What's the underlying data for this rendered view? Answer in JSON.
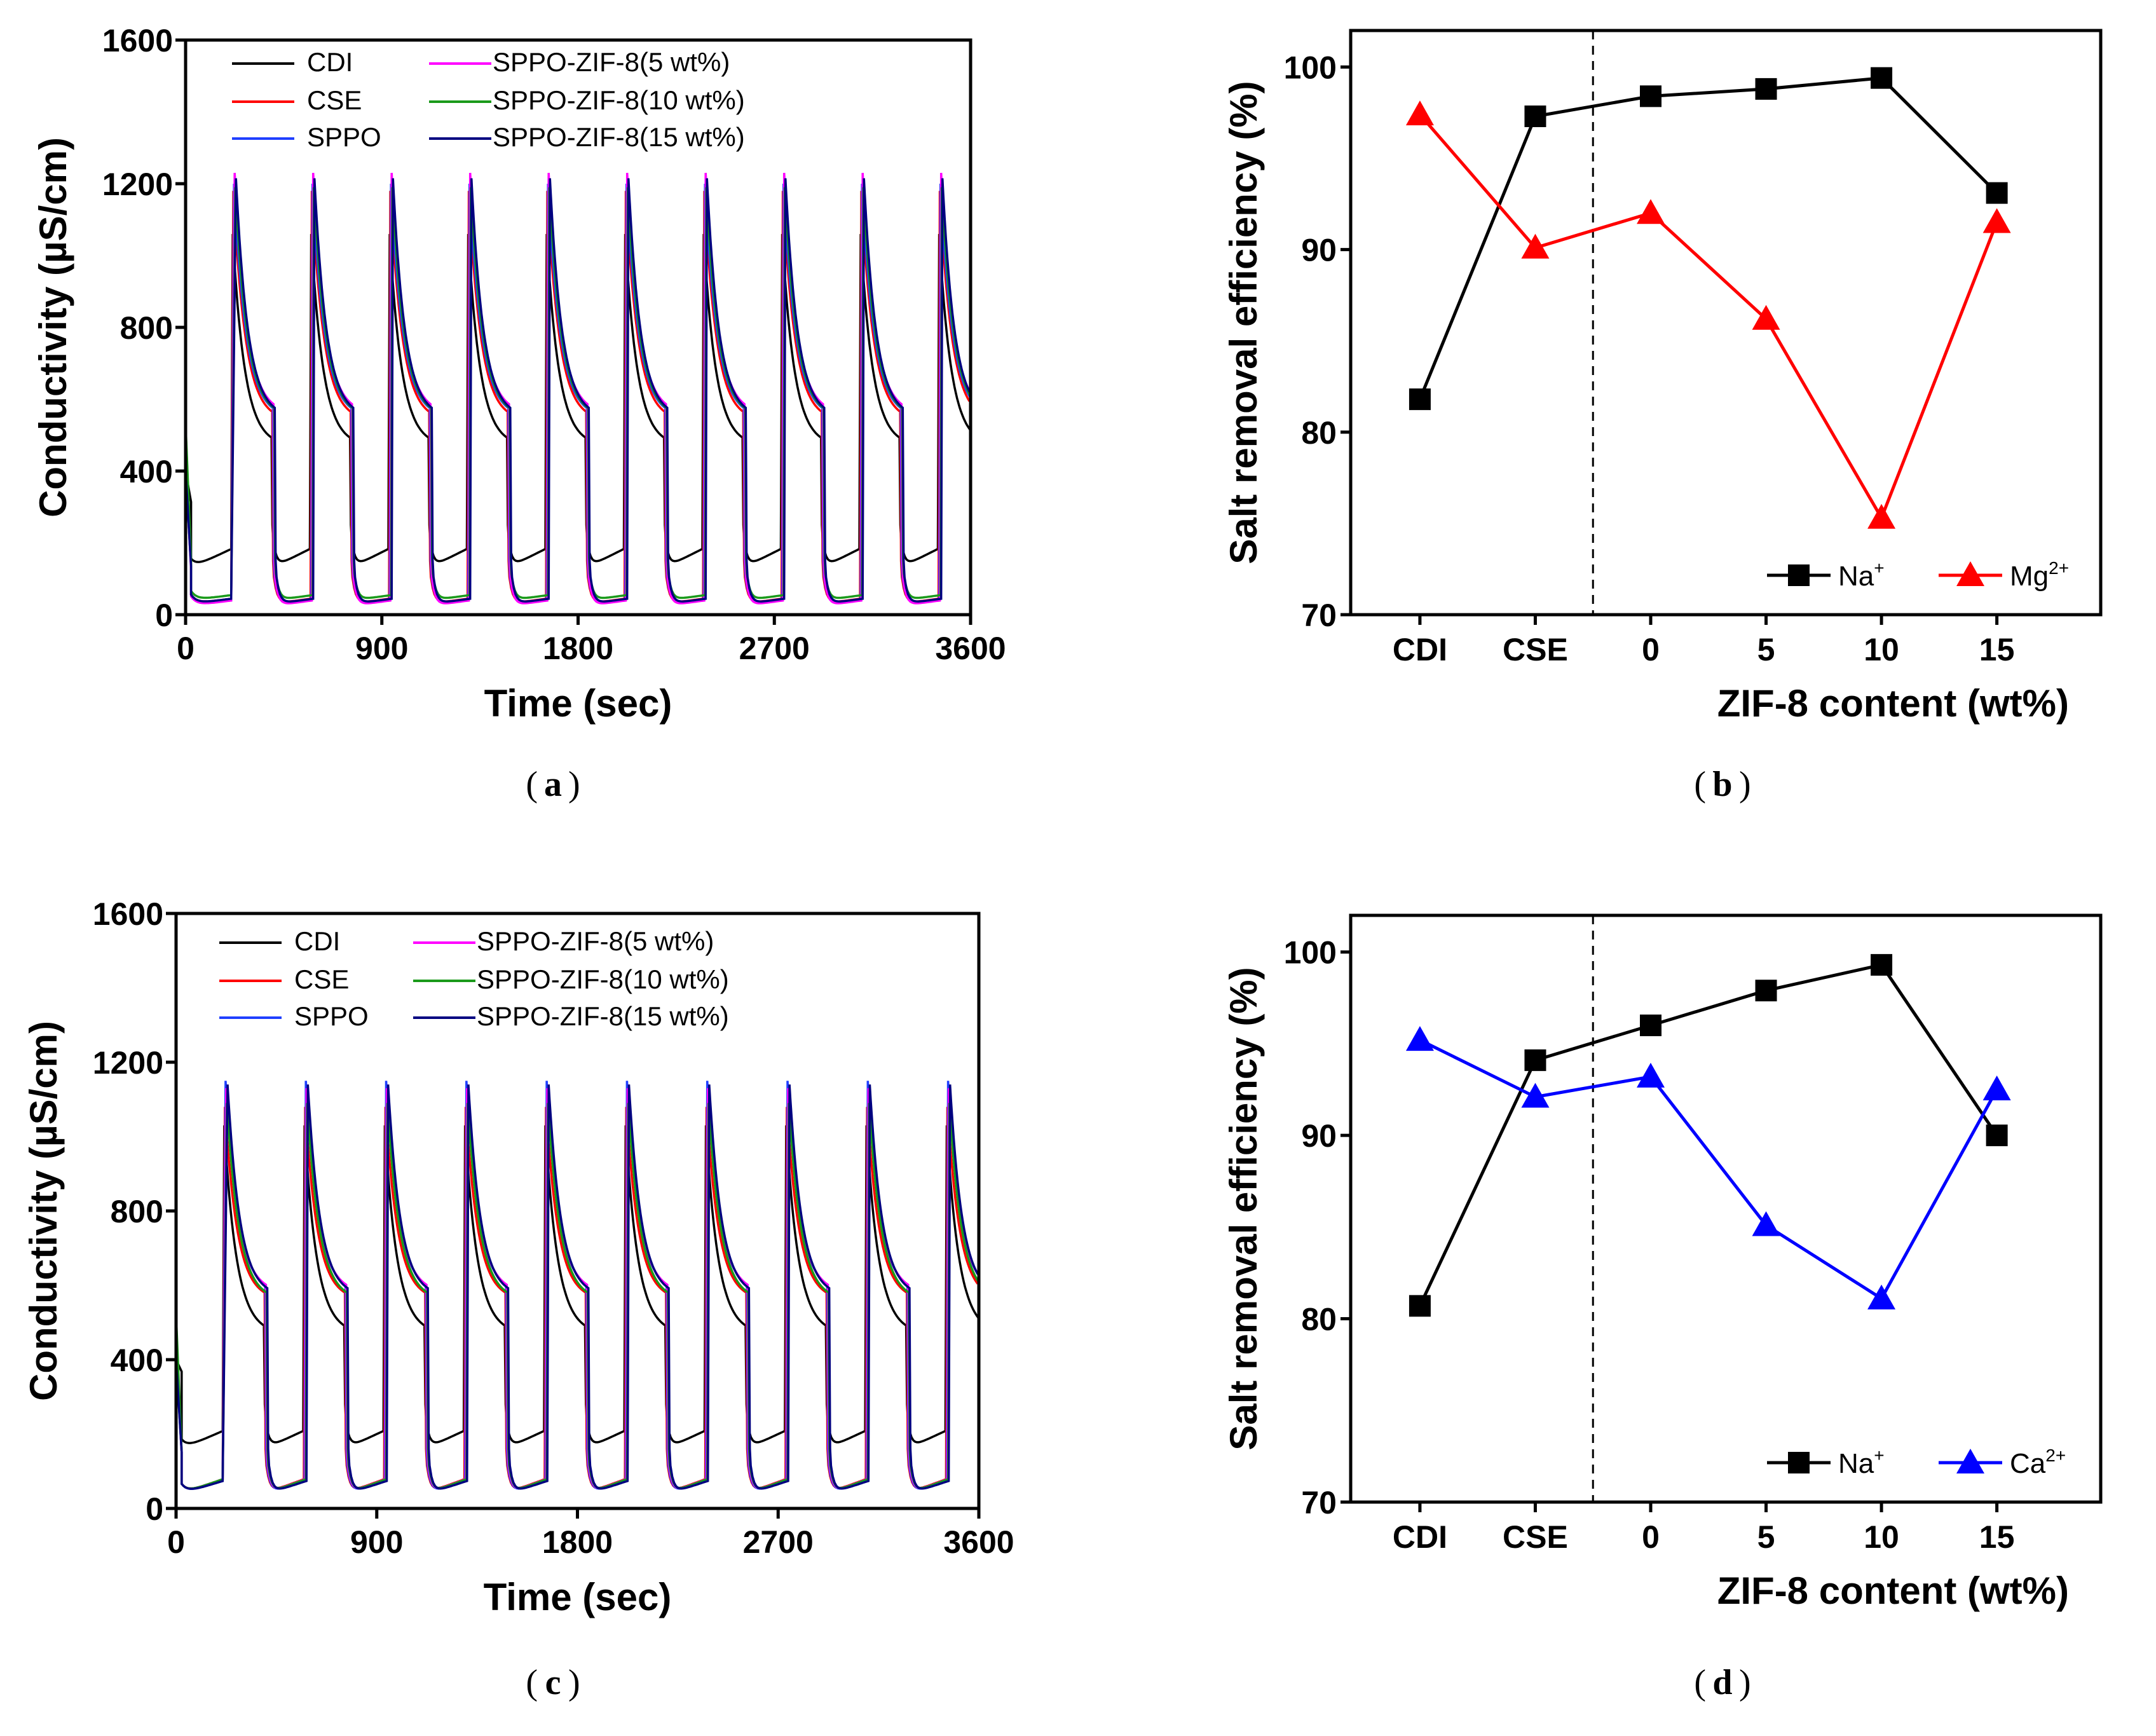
{
  "chart_data": [
    {
      "id": "a",
      "type": "line",
      "caption": "a",
      "xlabel": "Time (sec)",
      "ylabel": "Conductivity (µS/cm)",
      "xlim": [
        0,
        3600
      ],
      "ylim": [
        0,
        1600
      ],
      "xticks": [
        0,
        900,
        1800,
        2700,
        3600
      ],
      "yticks": [
        0,
        400,
        800,
        1200,
        1600
      ],
      "cycle_period": 360,
      "cycles": 10,
      "series": [
        {
          "name": "CDI",
          "color": "#000000",
          "start": 400,
          "peak": 1060,
          "end_high": 470,
          "low": 130,
          "low_end": 185
        },
        {
          "name": "CSE",
          "color": "#ff0000",
          "start": 520,
          "peak": 1180,
          "end_high": 540,
          "low": 30,
          "low_end": 45
        },
        {
          "name": "SPPO",
          "color": "#1f3fff",
          "start": 400,
          "peak": 1200,
          "end_high": 550,
          "low": 30,
          "low_end": 40
        },
        {
          "name": "SPPO-ZIF-8(5 wt%)",
          "color": "#ff00ff",
          "start": 420,
          "peak": 1230,
          "end_high": 560,
          "low": 25,
          "low_end": 40
        },
        {
          "name": "SPPO-ZIF-8(10 wt%)",
          "color": "#1a9a1a",
          "start": 530,
          "peak": 1190,
          "end_high": 550,
          "low": 40,
          "low_end": 55
        },
        {
          "name": "SPPO-ZIF-8(15 wt%)",
          "color": "#000080",
          "start": 400,
          "peak": 1215,
          "end_high": 550,
          "low": 30,
          "low_end": 45
        }
      ]
    },
    {
      "id": "b",
      "type": "line",
      "caption": "b",
      "xlabel": "ZIF-8 content (wt%)",
      "ylabel": "Salt removal efficiency (%)",
      "categories": [
        "CDI",
        "CSE",
        "0",
        "5",
        "10",
        "15"
      ],
      "ylim": [
        70,
        102
      ],
      "yticks": [
        70,
        80,
        90,
        100
      ],
      "series": [
        {
          "name": "Na",
          "sup": "+",
          "color": "#000000",
          "marker": "square",
          "values": [
            81.8,
            97.3,
            98.4,
            98.8,
            99.4,
            93.1
          ]
        },
        {
          "name": "Mg",
          "sup": "2+",
          "color": "#ff0000",
          "marker": "triangle",
          "values": [
            97.4,
            90.1,
            92.0,
            86.2,
            75.3,
            91.5
          ]
        }
      ]
    },
    {
      "id": "c",
      "type": "line",
      "caption": "c",
      "xlabel": "Time (sec)",
      "ylabel": "Conductivity (µS/cm)",
      "xlim": [
        0,
        3600
      ],
      "ylim": [
        0,
        1600
      ],
      "xticks": [
        0,
        900,
        1800,
        2700,
        3600
      ],
      "yticks": [
        0,
        400,
        800,
        1200,
        1600
      ],
      "cycle_period": 360,
      "cycles": 10,
      "series": [
        {
          "name": "CDI",
          "color": "#000000",
          "start": 400,
          "peak": 1030,
          "end_high": 470,
          "low": 160,
          "low_end": 210
        },
        {
          "name": "CSE",
          "color": "#ff0000",
          "start": 420,
          "peak": 1080,
          "end_high": 560,
          "low": 40,
          "low_end": 80
        },
        {
          "name": "SPPO",
          "color": "#1f3fff",
          "start": 400,
          "peak": 1150,
          "end_high": 580,
          "low": 40,
          "low_end": 75
        },
        {
          "name": "SPPO-ZIF-8(5 wt%)",
          "color": "#ff00ff",
          "start": 420,
          "peak": 1130,
          "end_high": 580,
          "low": 40,
          "low_end": 80
        },
        {
          "name": "SPPO-ZIF-8(10 wt%)",
          "color": "#1a9a1a",
          "start": 520,
          "peak": 1090,
          "end_high": 560,
          "low": 40,
          "low_end": 80
        },
        {
          "name": "SPPO-ZIF-8(15 wt%)",
          "color": "#000080",
          "start": 400,
          "peak": 1140,
          "end_high": 570,
          "low": 40,
          "low_end": 75
        }
      ]
    },
    {
      "id": "d",
      "type": "line",
      "caption": "d",
      "xlabel": "ZIF-8 content (wt%)",
      "ylabel": "Salt removal efficiency (%)",
      "categories": [
        "CDI",
        "CSE",
        "0",
        "5",
        "10",
        "15"
      ],
      "ylim": [
        70,
        102
      ],
      "yticks": [
        70,
        80,
        90,
        100
      ],
      "series": [
        {
          "name": "Na",
          "sup": "+",
          "color": "#000000",
          "marker": "square",
          "values": [
            80.7,
            94.1,
            96.0,
            97.9,
            99.3,
            90.0
          ]
        },
        {
          "name": "Ca",
          "sup": "2+",
          "color": "#0000ff",
          "marker": "triangle",
          "values": [
            95.2,
            92.1,
            93.2,
            85.1,
            81.1,
            92.5
          ]
        }
      ]
    }
  ]
}
